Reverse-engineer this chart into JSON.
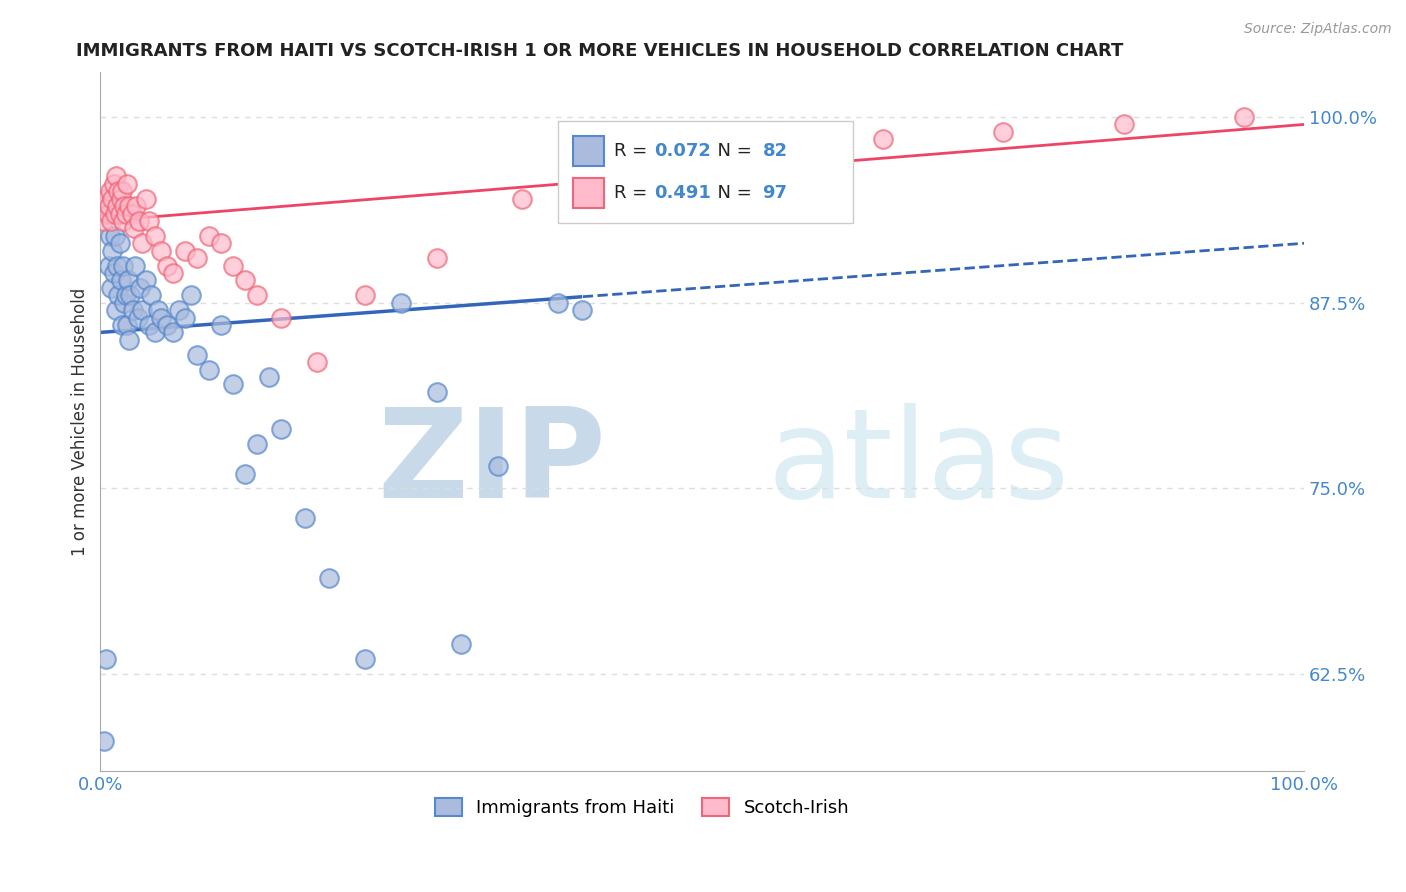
{
  "title": "IMMIGRANTS FROM HAITI VS SCOTCH-IRISH 1 OR MORE VEHICLES IN HOUSEHOLD CORRELATION CHART",
  "source": "Source: ZipAtlas.com",
  "ylabel": "1 or more Vehicles in Household",
  "xlim": [
    0.0,
    100.0
  ],
  "ylim": [
    56.0,
    103.0
  ],
  "yticks": [
    62.5,
    75.0,
    87.5,
    100.0
  ],
  "ytick_labels": [
    "62.5%",
    "75.0%",
    "87.5%",
    "100.0%"
  ],
  "xticks": [
    0.0,
    100.0
  ],
  "xtick_labels": [
    "0.0%",
    "100.0%"
  ],
  "haiti_color": "#aabbdd",
  "scotch_color": "#ffbbcc",
  "haiti_edge_color": "#5588cc",
  "scotch_edge_color": "#ee6677",
  "haiti_line_color": "#3366bb",
  "scotch_line_color": "#ee4466",
  "background_color": "#ffffff",
  "watermark_zip": "ZIP",
  "watermark_atlas": "atlas",
  "watermark_color": "#ddeeff",
  "grid_color": "#dddddd",
  "haiti_x": [
    0.3,
    0.5,
    0.7,
    0.8,
    0.9,
    1.0,
    1.1,
    1.2,
    1.3,
    1.4,
    1.5,
    1.6,
    1.7,
    1.8,
    1.9,
    2.0,
    2.1,
    2.2,
    2.3,
    2.4,
    2.5,
    2.7,
    2.9,
    3.1,
    3.3,
    3.5,
    3.8,
    4.0,
    4.2,
    4.5,
    4.8,
    5.0,
    5.5,
    6.0,
    6.5,
    7.0,
    7.5,
    8.0,
    9.0,
    10.0,
    11.0,
    12.0,
    13.0,
    14.0,
    15.0,
    17.0,
    19.0,
    22.0,
    25.0,
    28.0,
    30.0,
    33.0,
    38.0,
    40.0
  ],
  "haiti_y": [
    58.0,
    63.5,
    90.0,
    92.0,
    88.5,
    91.0,
    89.5,
    92.0,
    87.0,
    90.0,
    88.0,
    91.5,
    89.0,
    86.0,
    90.0,
    87.5,
    88.0,
    86.0,
    89.0,
    85.0,
    88.0,
    87.0,
    90.0,
    86.5,
    88.5,
    87.0,
    89.0,
    86.0,
    88.0,
    85.5,
    87.0,
    86.5,
    86.0,
    85.5,
    87.0,
    86.5,
    88.0,
    84.0,
    83.0,
    86.0,
    82.0,
    76.0,
    78.0,
    82.5,
    79.0,
    73.0,
    69.0,
    63.5,
    87.5,
    81.5,
    64.5,
    76.5,
    87.5,
    87.0
  ],
  "scotch_x": [
    0.2,
    0.4,
    0.5,
    0.6,
    0.7,
    0.8,
    0.9,
    1.0,
    1.1,
    1.2,
    1.3,
    1.4,
    1.5,
    1.6,
    1.7,
    1.8,
    1.9,
    2.0,
    2.1,
    2.2,
    2.4,
    2.6,
    2.8,
    3.0,
    3.2,
    3.5,
    3.8,
    4.0,
    4.5,
    5.0,
    5.5,
    6.0,
    7.0,
    8.0,
    9.0,
    10.0,
    11.0,
    12.0,
    13.0,
    15.0,
    18.0,
    22.0,
    28.0,
    35.0,
    45.0,
    55.0,
    65.0,
    75.0,
    85.0,
    95.0
  ],
  "scotch_y": [
    93.0,
    94.0,
    94.5,
    93.5,
    94.0,
    95.0,
    93.0,
    94.5,
    95.5,
    93.5,
    96.0,
    94.0,
    95.0,
    93.5,
    94.5,
    95.0,
    93.0,
    94.0,
    93.5,
    95.5,
    94.0,
    93.5,
    92.5,
    94.0,
    93.0,
    91.5,
    94.5,
    93.0,
    92.0,
    91.0,
    90.0,
    89.5,
    91.0,
    90.5,
    92.0,
    91.5,
    90.0,
    89.0,
    88.0,
    86.5,
    83.5,
    88.0,
    90.5,
    94.5,
    96.5,
    98.0,
    98.5,
    99.0,
    99.5,
    100.0
  ],
  "haiti_trend_x0": 0.0,
  "haiti_trend_x1": 100.0,
  "haiti_trend_y0": 85.5,
  "haiti_trend_y1": 91.5,
  "haiti_solid_end": 40.0,
  "scotch_trend_x0": 0.0,
  "scotch_trend_x1": 100.0,
  "scotch_trend_y0": 93.0,
  "scotch_trend_y1": 99.5
}
